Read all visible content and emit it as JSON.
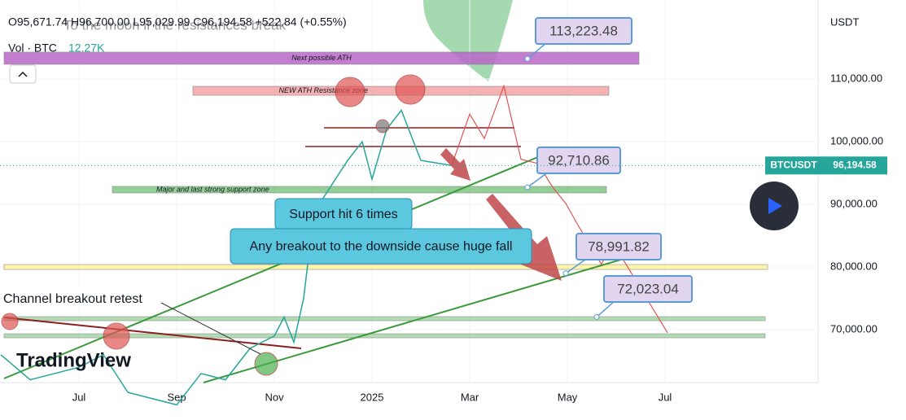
{
  "chart_data": {
    "type": "line",
    "header": {
      "ohlc": "O95,671.74 H96,700.00 L95,029.99 C96,194.58 +522.84 (+0.55%)",
      "title": "To the moon if the resistances break",
      "volume_label": "Vol · BTC",
      "volume": "12.27K",
      "currency": "USDT",
      "logo": "TradingView"
    },
    "series": [
      {
        "name": "BTCUSDT",
        "color": "#26a69a",
        "x": [
          -1.6,
          -1,
          0,
          0.5,
          1,
          1.5,
          2,
          2.5,
          3,
          3.5,
          4,
          4.2,
          4.4,
          4.6,
          4.8,
          5,
          5.5,
          5.8,
          6,
          6.3,
          6.6,
          7,
          7.4,
          7.63
        ],
        "values": [
          66000,
          62000,
          64000,
          66000,
          60000,
          59000,
          58000,
          63000,
          62000,
          67000,
          69000,
          72000,
          68000,
          75000,
          88000,
          91000,
          97000,
          100000,
          94000,
          102000,
          105000,
          97000,
          96500,
          96194.58
        ]
      }
    ],
    "last_price": {
      "value": 96194.58,
      "label": "96,194.58"
    },
    "projection": {
      "color": "#e05555",
      "x": [
        7.63,
        8,
        8.3,
        8.7,
        9.05,
        9.4,
        9.7,
        9.97,
        10.2,
        10.7,
        10.9,
        12.05
      ],
      "values": [
        96194.58,
        104400,
        100500,
        108900,
        97200,
        96500,
        92700,
        90100,
        86900,
        80400,
        84300,
        69500
      ]
    },
    "zones": [
      {
        "label": "Next possible ATH",
        "range": [
          112340,
          114290
        ],
        "color": "#ba68c8"
      },
      {
        "label": "NEW ATH Resistance zone",
        "range": [
          107400,
          108830
        ],
        "color": "#f4a5a5"
      },
      {
        "label": "Major and last strong support zone",
        "range": [
          91820,
          92860
        ],
        "color": "#81c784"
      },
      {
        "range": [
          79610,
          80390
        ],
        "color": "#fff59d"
      },
      {
        "range": [
          71430,
          72080
        ],
        "color": "#a5d6a7"
      },
      {
        "range": [
          68700,
          69350
        ],
        "color": "#a5d6a7"
      }
    ],
    "price_labels": [
      {
        "value": 113223.48,
        "label": "113,223.48"
      },
      {
        "value": 92710.86,
        "label": "92,710.86"
      },
      {
        "value": 78991.82,
        "label": "78,991.82"
      },
      {
        "value": 72023.04,
        "label": "72,023.04"
      }
    ],
    "notes": [
      "Support hit 6 times",
      "Any breakout to the downside cause huge fall",
      "Channel breakout retest"
    ],
    "xlim": [
      -1.617,
      15.133
    ],
    "xticks": [
      {
        "value": 0,
        "label": "Jul"
      },
      {
        "value": 2,
        "label": "Sep"
      },
      {
        "value": 4,
        "label": "Nov"
      },
      {
        "value": 6,
        "label": "2025"
      },
      {
        "value": 8,
        "label": "Mar"
      },
      {
        "value": 10,
        "label": "May"
      },
      {
        "value": 12,
        "label": "Jul"
      }
    ],
    "ylim": [
      61560,
      122600
    ],
    "yticks": [
      {
        "value": 70000,
        "label": "70,000.00"
      },
      {
        "value": 80000,
        "label": "80,000.00"
      },
      {
        "value": 90000,
        "label": "90,000.00"
      },
      {
        "value": 100000,
        "label": "100,000.00"
      },
      {
        "value": 110000,
        "label": "110,000.00"
      }
    ],
    "grid": true
  }
}
